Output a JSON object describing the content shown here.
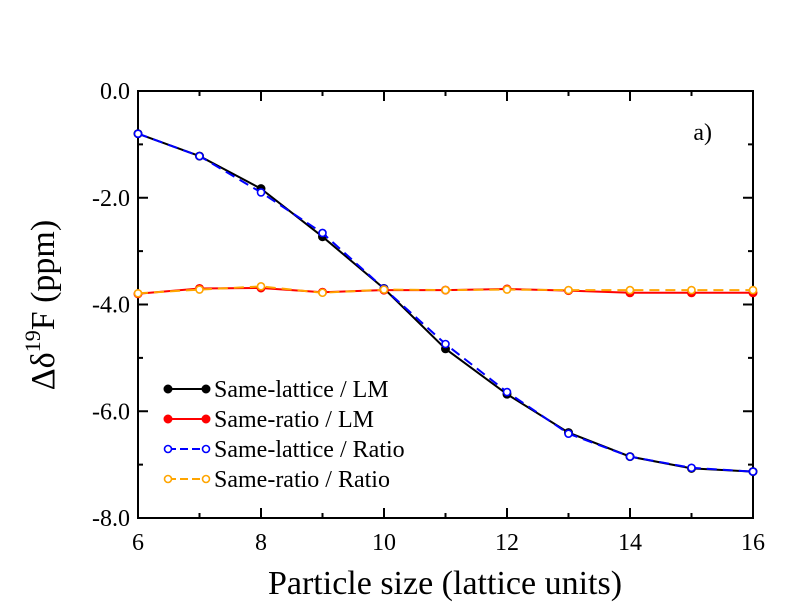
{
  "chart_data": {
    "type": "line",
    "panel_label": "a)",
    "xlabel": "Particle size (lattice units)",
    "ylabel": {
      "prefix": "Δδ",
      "superscript": "19",
      "suffix": "F (ppm)"
    },
    "xlim": [
      6,
      16
    ],
    "ylim": [
      -8.0,
      0.0
    ],
    "x_ticks": [
      6,
      8,
      10,
      12,
      14,
      16
    ],
    "x_tick_labels": [
      "6",
      "8",
      "10",
      "12",
      "14",
      "16"
    ],
    "y_ticks": [
      0.0,
      -2.0,
      -4.0,
      -6.0,
      -8.0
    ],
    "y_tick_labels": [
      "0.0",
      "-2.0",
      "-4.0",
      "-6.0",
      "-8.0"
    ],
    "x": [
      6,
      7,
      8,
      9,
      10,
      11,
      12,
      13,
      14,
      15,
      16
    ],
    "series": [
      {
        "name": "Same-lattice / LM",
        "color": "#000000",
        "dash": "solid",
        "marker": "filled",
        "values": [
          -0.8,
          -1.22,
          -1.83,
          -2.73,
          -3.7,
          -4.83,
          -5.68,
          -6.4,
          -6.85,
          -7.07,
          -7.13
        ]
      },
      {
        "name": "Same-ratio / LM",
        "color": "#ff0000",
        "dash": "solid",
        "marker": "filled",
        "values": [
          -3.8,
          -3.7,
          -3.69,
          -3.77,
          -3.73,
          -3.73,
          -3.71,
          -3.74,
          -3.78,
          -3.78,
          -3.78
        ]
      },
      {
        "name": "Same-lattice / Ratio",
        "color": "#0000ff",
        "dash": "dashed",
        "marker": "open",
        "values": [
          -0.8,
          -1.22,
          -1.9,
          -2.66,
          -3.7,
          -4.74,
          -5.64,
          -6.42,
          -6.85,
          -7.06,
          -7.13
        ]
      },
      {
        "name": "Same-ratio / Ratio",
        "color": "#ffa500",
        "dash": "dashed",
        "marker": "open",
        "values": [
          -3.79,
          -3.72,
          -3.66,
          -3.78,
          -3.72,
          -3.73,
          -3.72,
          -3.73,
          -3.73,
          -3.73,
          -3.73
        ]
      }
    ],
    "legend_position": "bottom-left"
  }
}
